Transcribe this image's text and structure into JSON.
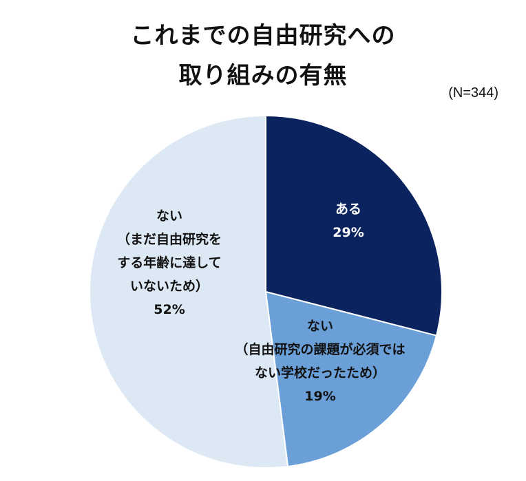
{
  "chart_data": {
    "type": "pie",
    "title_lines": [
      "これまでの自由研究への",
      "取り組みの有無"
    ],
    "note": "(N=344)",
    "slices": [
      {
        "label_lines": [
          "ある",
          "29%"
        ],
        "value": 29,
        "color": "#0b2460",
        "text_color": "#ffffff"
      },
      {
        "label_lines": [
          "ない",
          "（自由研究の課題が必須では",
          "ない学校だったため）",
          "19%"
        ],
        "value": 19,
        "color": "#6a9fd8",
        "text_color": "#111111"
      },
      {
        "label_lines": [
          "ない",
          "（まだ自由研究を",
          "する年齢に達して",
          "いないため）",
          "52%"
        ],
        "value": 52,
        "color": "#dde8f5",
        "text_color": "#111111"
      }
    ]
  }
}
